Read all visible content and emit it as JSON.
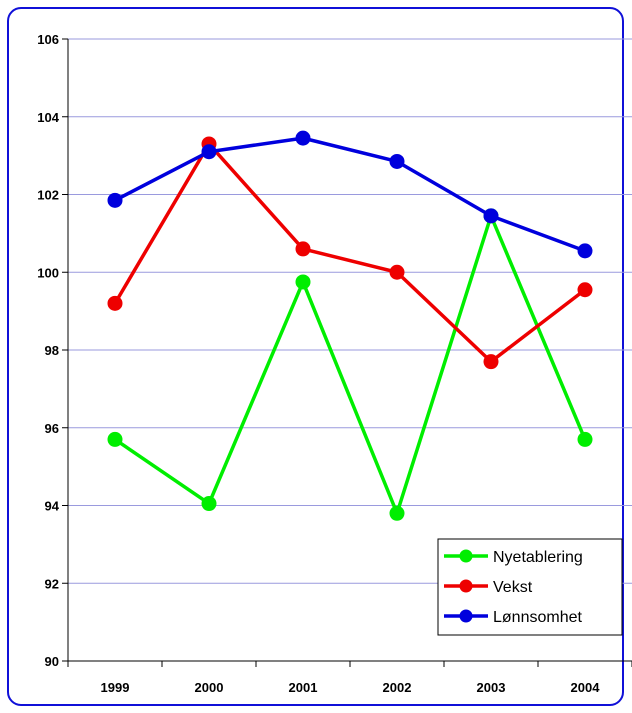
{
  "chart_data": {
    "type": "line",
    "title": "",
    "xlabel": "",
    "ylabel": "",
    "categories": [
      "1999",
      "2000",
      "2001",
      "2002",
      "2003",
      "2004"
    ],
    "ylim": [
      90,
      106
    ],
    "yticks": [
      90,
      92,
      94,
      96,
      98,
      100,
      102,
      104,
      106
    ],
    "ytick_labels": [
      "90",
      "92",
      "94",
      "96",
      "98",
      "100",
      "102",
      "104",
      "106"
    ],
    "grid": "horizontal",
    "legend_position": "bottom-right",
    "series": [
      {
        "name": "Nyetablering",
        "color": "#00ee00",
        "values": [
          95.7,
          94.05,
          99.75,
          93.8,
          101.45,
          95.7
        ]
      },
      {
        "name": "Vekst",
        "color": "#ee0000",
        "values": [
          99.2,
          103.3,
          100.6,
          100.0,
          97.7,
          99.55
        ]
      },
      {
        "name": "Lønnsomhet",
        "color": "#0000dd",
        "values": [
          101.85,
          103.1,
          103.45,
          102.85,
          101.45,
          100.55
        ]
      }
    ]
  },
  "colors": {
    "frame_border": "#1010d8",
    "gridline": "#9a9ade",
    "axis": "#000000"
  }
}
